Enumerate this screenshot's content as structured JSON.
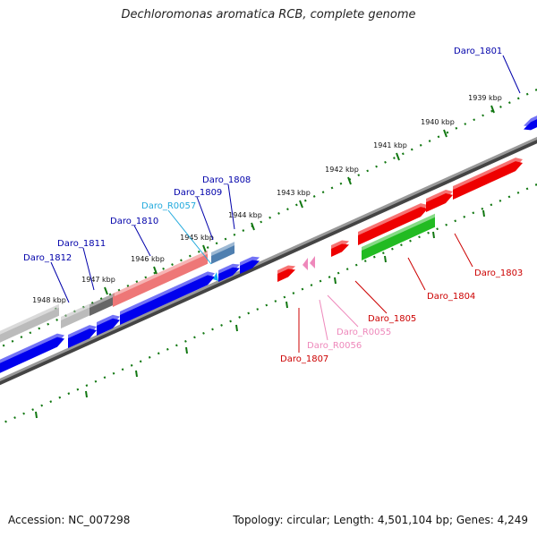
{
  "title": "Dechloromonas aromatica RCB, complete genome",
  "footer": {
    "accession": "Accession: NC_007298",
    "summary": "Topology: circular; Length: 4,501,104 bp; Genes: 4,249"
  },
  "ticks": [
    {
      "label": "1939 kbp"
    },
    {
      "label": "1940 kbp"
    },
    {
      "label": "1941 kbp"
    },
    {
      "label": "1942 kbp"
    },
    {
      "label": "1943 kbp"
    },
    {
      "label": "1944 kbp"
    },
    {
      "label": "1945 kbp"
    },
    {
      "label": "1946 kbp"
    },
    {
      "label": "1947 kbp"
    },
    {
      "label": "1948 kbp"
    }
  ],
  "colors": {
    "blue": "#0000ee",
    "red": "#ee0000",
    "green": "#22bb22",
    "salmon": "#ee7777",
    "gray_light": "#bbbbbb",
    "gray_dark": "#666666",
    "steel": "#4f7fb0",
    "cyan": "#11aaee",
    "pink": "#ee88bb",
    "backbone": "#777777",
    "tick": "#117711"
  },
  "gene_labels": [
    {
      "id": "daro_1801",
      "text": "Daro_1801",
      "color": "#0000aa"
    },
    {
      "id": "daro_1808",
      "text": "Daro_1808",
      "color": "#0000aa"
    },
    {
      "id": "daro_1809",
      "text": "Daro_1809",
      "color": "#0000aa"
    },
    {
      "id": "daro_r0057",
      "text": "Daro_R0057",
      "color": "#22aadd"
    },
    {
      "id": "daro_1810",
      "text": "Daro_1810",
      "color": "#0000aa"
    },
    {
      "id": "daro_1811",
      "text": "Daro_1811",
      "color": "#0000aa"
    },
    {
      "id": "daro_1812",
      "text": "Daro_1812",
      "color": "#0000aa"
    },
    {
      "id": "daro_1803",
      "text": "Daro_1803",
      "color": "#cc0000"
    },
    {
      "id": "daro_1804",
      "text": "Daro_1804",
      "color": "#cc0000"
    },
    {
      "id": "daro_1805",
      "text": "Daro_1805",
      "color": "#cc0000"
    },
    {
      "id": "daro_r0055",
      "text": "Daro_R0055",
      "color": "#ee88bb"
    },
    {
      "id": "daro_r0056",
      "text": "Daro_R0056",
      "color": "#ee88bb"
    },
    {
      "id": "daro_1807",
      "text": "Daro_1807",
      "color": "#cc0000"
    }
  ]
}
